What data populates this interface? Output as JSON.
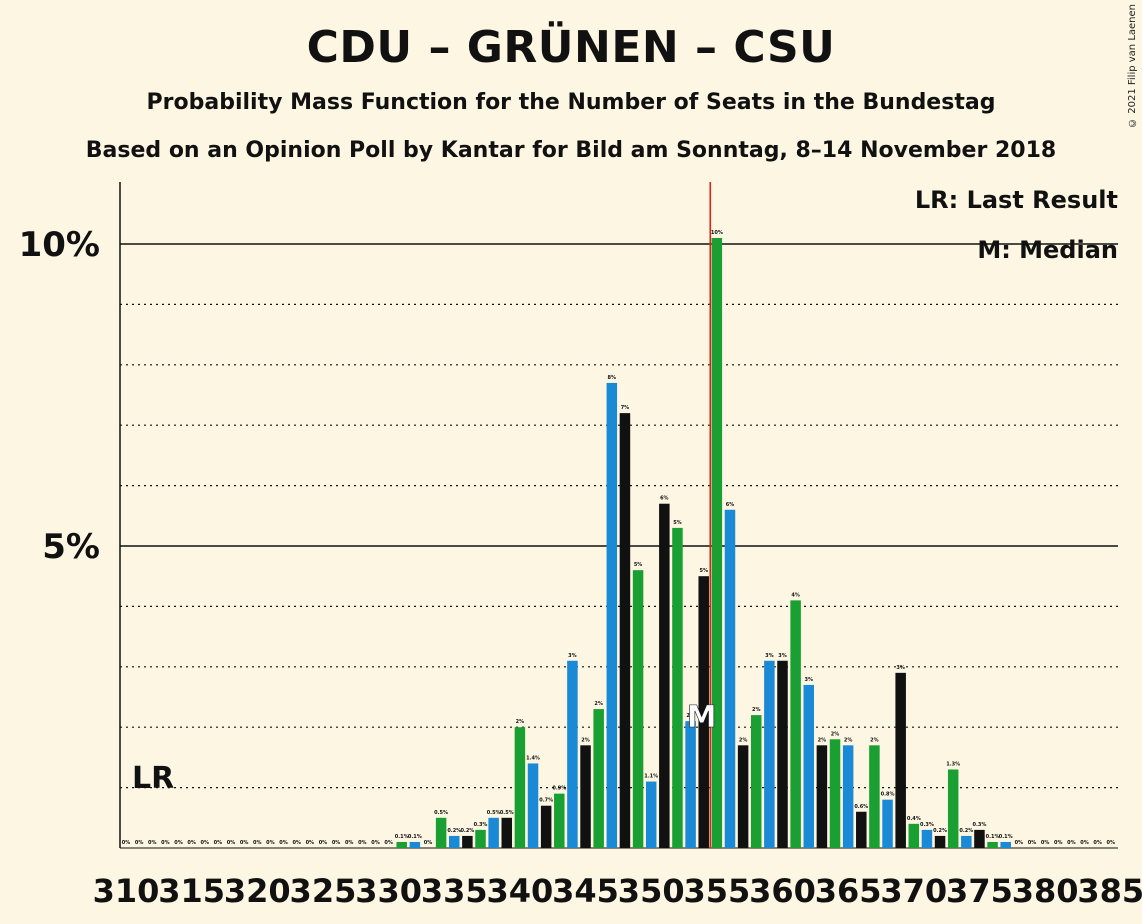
{
  "title": "CDU – GRÜNEN – CSU",
  "subtitle": "Probability Mass Function for the Number of Seats in the Bundestag",
  "subtitle2": "Based on an Opinion Poll by Kantar for Bild am Sonntag, 8–14 November 2018",
  "copyright": "© 2021 Filip van Laenen",
  "legend": {
    "lr": "LR: Last Result",
    "median": "M: Median"
  },
  "markers": {
    "lr_label": "LR",
    "median_label": "M"
  },
  "colors": {
    "green": "#1aa032",
    "blue": "#1a8ad6",
    "black": "#111111",
    "majority_line": "#e0201a",
    "background": "#fdf6e3"
  },
  "chart_data": {
    "type": "bar",
    "x_start": 310,
    "x_end": 385,
    "xticks": [
      "310",
      "315",
      "320",
      "325",
      "330",
      "335",
      "340",
      "345",
      "350",
      "355",
      "360",
      "365",
      "370",
      "375",
      "380",
      "385"
    ],
    "yticks": [
      "5%",
      "10%"
    ],
    "ylim": [
      0,
      11
    ],
    "majority": 355,
    "last_result": 311,
    "median": 354,
    "values": [
      0,
      0,
      0,
      0,
      0,
      0,
      0,
      0,
      0,
      0,
      0,
      0,
      0,
      0,
      0,
      0,
      0,
      0,
      0,
      0,
      0,
      0.1,
      0.1,
      0,
      0.5,
      0.2,
      0.2,
      0.3,
      0.5,
      0.5,
      2.0,
      1.4,
      0.7,
      0.9,
      3.1,
      1.7,
      2.3,
      7.7,
      7.2,
      4.6,
      1.1,
      5.7,
      5.3,
      2.1,
      4.5,
      10.1,
      5.6,
      1.7,
      2.2,
      3.1,
      3.1,
      4.1,
      2.7,
      1.7,
      1.8,
      1.7,
      0.6,
      1.7,
      0.8,
      2.9,
      0.4,
      0.3,
      0.2,
      1.3,
      0.2,
      0.3,
      0.1,
      0.1,
      0,
      0,
      0,
      0,
      0,
      0,
      0,
      0
    ],
    "labels": [
      "0%",
      "0%",
      "0%",
      "0%",
      "0%",
      "0%",
      "0%",
      "0%",
      "0%",
      "0%",
      "0%",
      "0%",
      "0%",
      "0%",
      "0%",
      "0%",
      "0%",
      "0%",
      "0%",
      "0%",
      "0%",
      "0.1%",
      "0.1%",
      "0%",
      "0.5%",
      "0.2%",
      "0.2%",
      "0.3%",
      "0.5%",
      "0.5%",
      "2%",
      "1.4%",
      "0.7%",
      "0.9%",
      "3%",
      "2%",
      "2%",
      "8%",
      "7%",
      "5%",
      "1.1%",
      "6%",
      "5%",
      "2%",
      "5%",
      "10%",
      "6%",
      "2%",
      "2%",
      "3%",
      "3%",
      "4%",
      "3%",
      "2%",
      "2%",
      "2%",
      "0.6%",
      "2%",
      "0.8%",
      "3%",
      "0.4%",
      "0.3%",
      "0.2%",
      "1.3%",
      "0.2%",
      "0.3%",
      "0.1%",
      "0.1%",
      "0%",
      "0%",
      "0%",
      "0%",
      "0%",
      "0%",
      "0%",
      "0%"
    ],
    "bar_colors": [
      "green",
      "blue",
      "black",
      "green",
      "blue",
      "black",
      "green",
      "blue",
      "black",
      "green",
      "blue",
      "black",
      "green",
      "blue",
      "black",
      "green",
      "blue",
      "black",
      "green",
      "blue",
      "black",
      "green",
      "blue",
      "black",
      "green",
      "blue",
      "black",
      "green",
      "blue",
      "black",
      "green",
      "blue",
      "black",
      "green",
      "blue",
      "black",
      "green",
      "blue",
      "black",
      "green",
      "blue",
      "black",
      "green",
      "blue",
      "black",
      "green",
      "blue",
      "black",
      "green",
      "blue",
      "black",
      "green",
      "blue",
      "black",
      "green",
      "blue",
      "black",
      "green",
      "blue",
      "black",
      "green",
      "blue",
      "black",
      "green",
      "blue",
      "black",
      "green",
      "blue",
      "black",
      "green",
      "blue",
      "black",
      "green",
      "blue",
      "black",
      "green"
    ]
  }
}
